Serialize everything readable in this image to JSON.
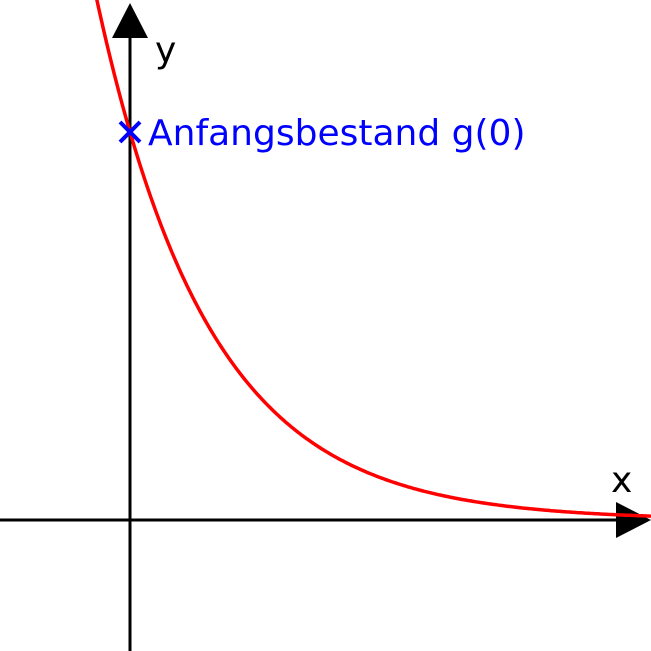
{
  "chart_data": {
    "type": "line",
    "title": "",
    "xlabel": "x",
    "ylabel": "y",
    "xlim": [
      -1,
      4
    ],
    "ylim": [
      -0.33,
      1.33
    ],
    "grid": false,
    "legend": "none",
    "series": [
      {
        "color": "#ff0000",
        "function": "exponential decay g(x) = g(0)·e^(-k·x)",
        "x": [
          -0.3,
          -0.2,
          -0.1,
          0,
          0.25,
          0.5,
          0.75,
          1.0,
          1.5,
          2.0,
          2.5,
          3.0,
          3.5,
          4.0
        ],
        "y": [
          1.4,
          1.25,
          1.12,
          1.0,
          0.75,
          0.56,
          0.42,
          0.32,
          0.18,
          0.1,
          0.06,
          0.03,
          0.02,
          0.01
        ]
      }
    ],
    "annotations": [
      {
        "text": "Anfangsbestand g(0)",
        "x": 0,
        "y": 1.0,
        "marker": "cross",
        "color": "#0000ff"
      }
    ],
    "colors": {
      "axes": "#000000",
      "curve": "#ff0000",
      "annotation": "#0000ff"
    }
  }
}
